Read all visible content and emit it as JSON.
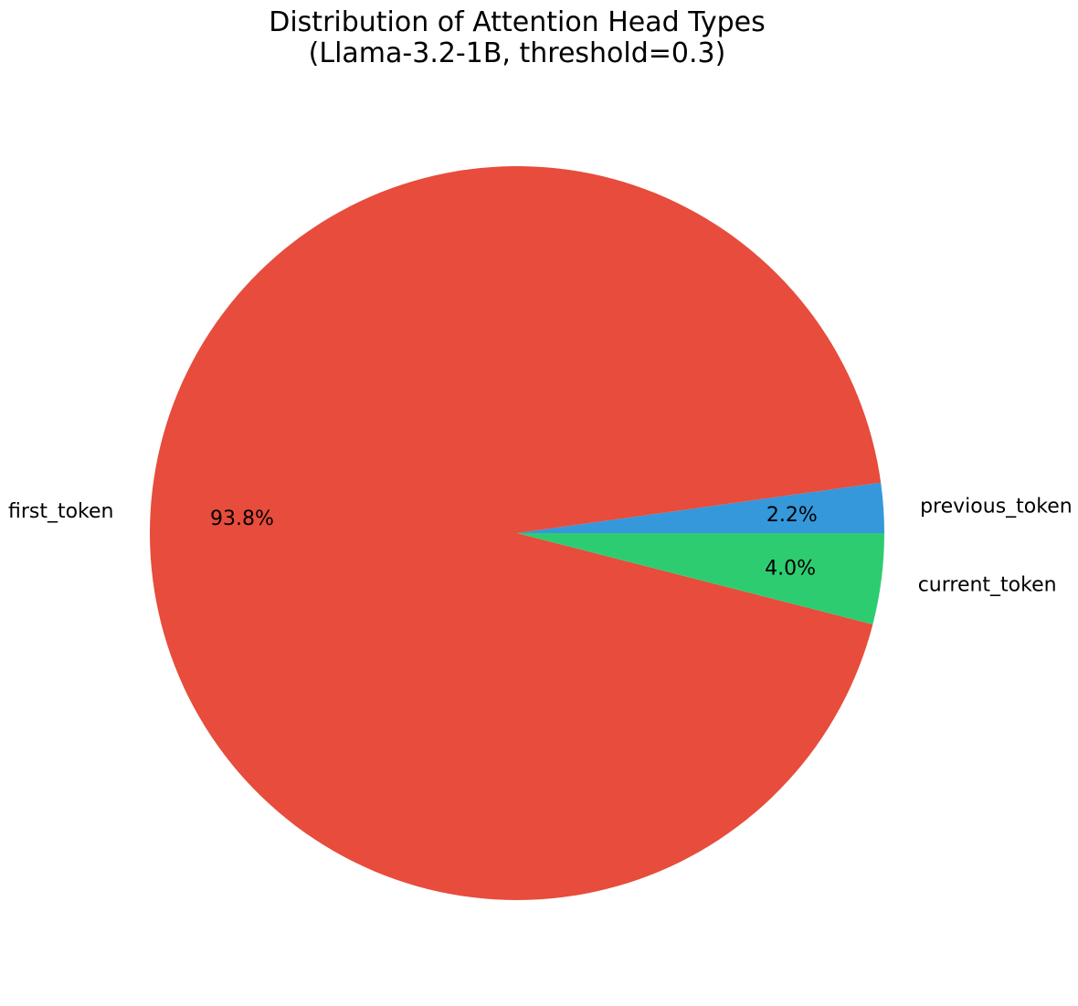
{
  "figure": {
    "background": "#ffffff",
    "text_color": "#000000",
    "title_line1": "Distribution of Attention Head Types",
    "title_line2": "(Llama-3.2-1B, threshold=0.3)"
  },
  "chart_data": {
    "type": "pie",
    "title": "Distribution of Attention Head Types\n(Llama-3.2-1B, threshold=0.3)",
    "slices": [
      {
        "label": "previous_token",
        "value": 2.2,
        "pct_label": "2.2%",
        "color": "#3498db"
      },
      {
        "label": "first_token",
        "value": 93.8,
        "pct_label": "93.8%",
        "color": "#e74c3c"
      },
      {
        "label": "current_token",
        "value": 4.0,
        "pct_label": "4.0%",
        "color": "#2ecc71"
      }
    ],
    "total": 100,
    "start_angle_deg": 0,
    "direction": "counterclockwise",
    "label_distance": 1.1,
    "pct_distance": 0.75,
    "legend": "none",
    "grid": "off"
  }
}
